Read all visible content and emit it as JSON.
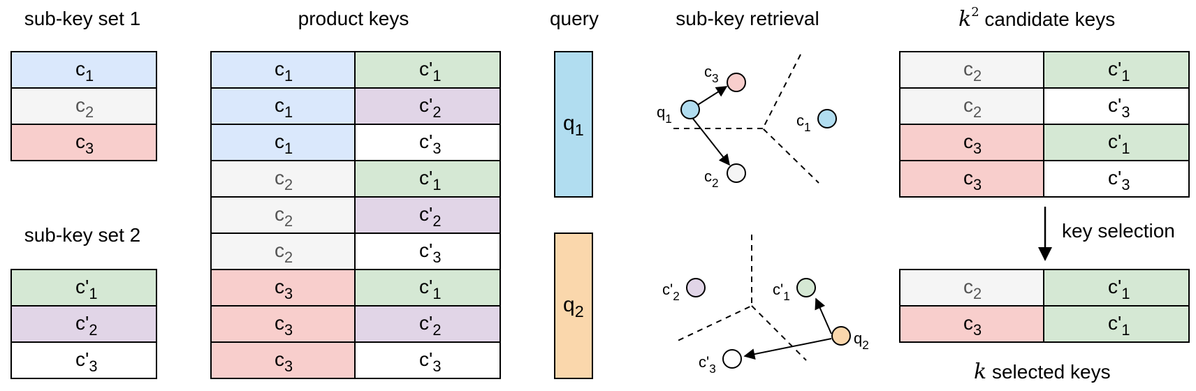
{
  "colors": {
    "blue": "#dae8fc",
    "gray": "#f5f5f5",
    "red": "#f8cecc",
    "green": "#d5e8d4",
    "purple": "#e1d5e7",
    "white": "#ffffff",
    "query1": "#b1ddf0",
    "query2": "#fad7ac",
    "pt_blue": "#b1ddf0",
    "pt_red": "#f8cecc",
    "pt_gray": "#f5f5f5",
    "pt_green": "#d5e8d4",
    "pt_purple": "#e1d5e7",
    "pt_orange": "#fad7ac"
  },
  "titles": {
    "subkey_set_1": "sub-key set 1",
    "subkey_set_2": "sub-key set 2",
    "product_keys": "product keys",
    "query": "query",
    "subkey_retrieval": "sub-key retrieval",
    "candidate_suffix": " candidate keys",
    "candidate_math": "k",
    "candidate_sup": "2",
    "selection_label": "key selection",
    "selected_suffix": " selected keys",
    "selected_math": "k"
  },
  "subkey_set_1": [
    {
      "base": "c",
      "sub": "1",
      "prime": false,
      "color": "blue"
    },
    {
      "base": "c",
      "sub": "2",
      "prime": false,
      "color": "gray"
    },
    {
      "base": "c",
      "sub": "3",
      "prime": false,
      "color": "red"
    }
  ],
  "subkey_set_2": [
    {
      "base": "c",
      "sub": "1",
      "prime": true,
      "color": "green"
    },
    {
      "base": "c",
      "sub": "2",
      "prime": true,
      "color": "purple"
    },
    {
      "base": "c",
      "sub": "3",
      "prime": true,
      "color": "white"
    }
  ],
  "product_keys": [
    [
      {
        "sub": "1",
        "prime": false,
        "color": "blue"
      },
      {
        "sub": "1",
        "prime": true,
        "color": "green"
      }
    ],
    [
      {
        "sub": "1",
        "prime": false,
        "color": "blue"
      },
      {
        "sub": "2",
        "prime": true,
        "color": "purple"
      }
    ],
    [
      {
        "sub": "1",
        "prime": false,
        "color": "blue"
      },
      {
        "sub": "3",
        "prime": true,
        "color": "white"
      }
    ],
    [
      {
        "sub": "2",
        "prime": false,
        "color": "gray"
      },
      {
        "sub": "1",
        "prime": true,
        "color": "green"
      }
    ],
    [
      {
        "sub": "2",
        "prime": false,
        "color": "gray"
      },
      {
        "sub": "2",
        "prime": true,
        "color": "purple"
      }
    ],
    [
      {
        "sub": "2",
        "prime": false,
        "color": "gray"
      },
      {
        "sub": "3",
        "prime": true,
        "color": "white"
      }
    ],
    [
      {
        "sub": "3",
        "prime": false,
        "color": "red"
      },
      {
        "sub": "1",
        "prime": true,
        "color": "green"
      }
    ],
    [
      {
        "sub": "3",
        "prime": false,
        "color": "red"
      },
      {
        "sub": "2",
        "prime": true,
        "color": "purple"
      }
    ],
    [
      {
        "sub": "3",
        "prime": false,
        "color": "red"
      },
      {
        "sub": "3",
        "prime": true,
        "color": "white"
      }
    ]
  ],
  "queries": [
    {
      "base": "q",
      "sub": "1",
      "color": "query1"
    },
    {
      "base": "q",
      "sub": "2",
      "color": "query2"
    }
  ],
  "candidate_keys": [
    [
      {
        "sub": "2",
        "prime": false,
        "color": "gray"
      },
      {
        "sub": "1",
        "prime": true,
        "color": "green"
      }
    ],
    [
      {
        "sub": "2",
        "prime": false,
        "color": "gray"
      },
      {
        "sub": "3",
        "prime": true,
        "color": "white"
      }
    ],
    [
      {
        "sub": "3",
        "prime": false,
        "color": "red"
      },
      {
        "sub": "1",
        "prime": true,
        "color": "green"
      }
    ],
    [
      {
        "sub": "3",
        "prime": false,
        "color": "red"
      },
      {
        "sub": "3",
        "prime": true,
        "color": "white"
      }
    ]
  ],
  "selected_keys": [
    [
      {
        "sub": "2",
        "prime": false,
        "color": "gray"
      },
      {
        "sub": "1",
        "prime": true,
        "color": "green"
      }
    ],
    [
      {
        "sub": "3",
        "prime": false,
        "color": "red"
      },
      {
        "sub": "1",
        "prime": true,
        "color": "green"
      }
    ]
  ],
  "retrieval_points_top": [
    {
      "label": "c",
      "sub": "3",
      "prime": false,
      "color": "pt_red"
    },
    {
      "label": "q",
      "sub": "1",
      "prime": false,
      "color": "pt_blue"
    },
    {
      "label": "c",
      "sub": "2",
      "prime": false,
      "color": "pt_gray"
    },
    {
      "label": "c",
      "sub": "1",
      "prime": false,
      "color": "pt_blue"
    }
  ],
  "retrieval_points_bottom": [
    {
      "label": "c",
      "sub": "2",
      "prime": true,
      "color": "pt_purple"
    },
    {
      "label": "c",
      "sub": "1",
      "prime": true,
      "color": "pt_green"
    },
    {
      "label": "q",
      "sub": "2",
      "prime": false,
      "color": "pt_orange"
    },
    {
      "label": "c",
      "sub": "3",
      "prime": true,
      "color": "white"
    }
  ]
}
